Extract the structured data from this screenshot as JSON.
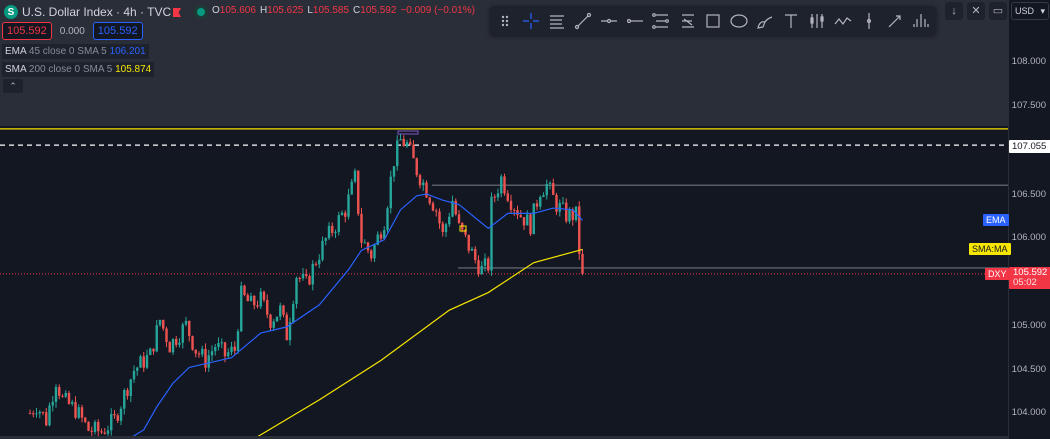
{
  "header": {
    "logo": "S",
    "title": "U.S. Dollar Index · 4h · TVC",
    "ohlc": {
      "o_label": "O",
      "o": "105.606",
      "h_label": "H",
      "h": "105.625",
      "l_label": "L",
      "l": "105.585",
      "c_label": "C",
      "c": "105.592",
      "change": "−0.009 (−0.01%)"
    }
  },
  "price_boxes": {
    "sell": "105.592",
    "spread": "0.000",
    "buy": "105.592"
  },
  "indicators": [
    {
      "name": "EMA",
      "params": "45 close 0 SMA 5",
      "value": "106.201",
      "color": "#2962ff"
    },
    {
      "name": "SMA",
      "params": "200 close 0 SMA 5",
      "value": "105.874",
      "color": "#f7e600"
    }
  ],
  "collapse_icon": "chevron-up-icon",
  "toolbar": {
    "tools": [
      "drag-handle",
      "crosshair",
      "horizontal-lines",
      "trend-line",
      "horizontal-ray",
      "ray",
      "parallel-channel",
      "regression-channel",
      "rectangle",
      "ellipse",
      "brush",
      "text",
      "long-position",
      "path",
      "vertical-line",
      "arrow",
      "pitchfork"
    ]
  },
  "right_buttons": {
    "down": "↓",
    "collapse": "collapse-icon",
    "fullscreen": "fullscreen-icon",
    "currency": "USD"
  },
  "axis": {
    "ticks": [
      "108.000",
      "107.500",
      "106.500",
      "106.000",
      "105.000",
      "104.500",
      "104.000"
    ],
    "tick_values": [
      108,
      107.5,
      106.5,
      106,
      105,
      104.5,
      104
    ],
    "dashed_label": "107.055",
    "last_price": "105.592",
    "countdown": "05:02"
  },
  "tags": {
    "ema": "EMA",
    "sma": "SMA:MA",
    "symbol": "DXY"
  },
  "colors": {
    "up": "#26a69a",
    "down": "#ef5350",
    "ema": "#2962ff",
    "sma": "#f7e600",
    "level": "#f7e600",
    "last": "#f23645"
  },
  "chart_data": {
    "type": "candlestick",
    "y_range": [
      103.7,
      108.7
    ],
    "levels": [
      {
        "price": 107.24,
        "style": "solid",
        "color": "#f7e600"
      },
      {
        "price": 107.055,
        "style": "dashed",
        "color": "#ffffff"
      },
      {
        "price": 106.6,
        "style": "solid",
        "color": "#9598a1"
      },
      {
        "price": 105.66,
        "style": "solid",
        "color": "#9598a1"
      },
      {
        "price": 105.592,
        "style": "dotted",
        "color": "#f23645"
      }
    ],
    "close_path": [
      [
        0,
        104.01
      ],
      [
        2,
        104.1
      ],
      [
        5,
        103.93
      ],
      [
        8,
        104.39
      ],
      [
        10,
        104.16
      ],
      [
        14,
        104.05
      ],
      [
        18,
        103.82
      ],
      [
        22,
        103.8
      ],
      [
        26,
        103.93
      ],
      [
        29,
        104.22
      ],
      [
        32,
        104.5
      ],
      [
        37,
        104.67
      ],
      [
        40,
        105.07
      ],
      [
        43,
        104.78
      ],
      [
        48,
        105.01
      ],
      [
        51,
        104.73
      ],
      [
        54,
        104.61
      ],
      [
        57,
        104.78
      ],
      [
        60,
        104.67
      ],
      [
        63,
        104.73
      ],
      [
        65,
        105.35
      ],
      [
        68,
        105.24
      ],
      [
        71,
        105.3
      ],
      [
        74,
        105.07
      ],
      [
        77,
        105.18
      ],
      [
        79,
        104.9
      ],
      [
        82,
        105.58
      ],
      [
        85,
        105.47
      ],
      [
        88,
        105.75
      ],
      [
        91,
        105.98
      ],
      [
        94,
        106.15
      ],
      [
        97,
        106.32
      ],
      [
        100,
        106.68
      ],
      [
        102,
        105.98
      ],
      [
        105,
        105.81
      ],
      [
        109,
        106.2
      ],
      [
        112,
        106.89
      ],
      [
        114,
        107.11
      ],
      [
        116,
        107.06
      ],
      [
        119,
        106.77
      ],
      [
        122,
        106.55
      ],
      [
        125,
        106.32
      ],
      [
        127,
        106.03
      ],
      [
        130,
        106.43
      ],
      [
        132,
        106.11
      ],
      [
        134,
        105.98
      ],
      [
        137,
        105.75
      ],
      [
        139,
        105.64
      ],
      [
        141,
        105.69
      ],
      [
        142,
        106.38
      ],
      [
        145,
        106.68
      ],
      [
        148,
        106.43
      ],
      [
        151,
        106.26
      ],
      [
        154,
        106.15
      ],
      [
        157,
        106.55
      ],
      [
        159,
        106.6
      ],
      [
        162,
        106.38
      ],
      [
        165,
        106.26
      ],
      [
        168,
        106.26
      ],
      [
        169,
        105.86
      ],
      [
        170,
        105.592
      ]
    ],
    "ema_path": [
      [
        15,
        103.73
      ],
      [
        31,
        103.73
      ],
      [
        35,
        103.82
      ],
      [
        39,
        104.08
      ],
      [
        44,
        104.35
      ],
      [
        49,
        104.53
      ],
      [
        62,
        104.64
      ],
      [
        71,
        104.92
      ],
      [
        79,
        104.99
      ],
      [
        89,
        105.24
      ],
      [
        98,
        105.64
      ],
      [
        102,
        105.86
      ],
      [
        109,
        105.98
      ],
      [
        114,
        106.32
      ],
      [
        119,
        106.48
      ],
      [
        122,
        106.5
      ],
      [
        127,
        106.43
      ],
      [
        132,
        106.38
      ],
      [
        141,
        106.11
      ],
      [
        147,
        106.28
      ],
      [
        155,
        106.28
      ],
      [
        161,
        106.34
      ],
      [
        167,
        106.32
      ],
      [
        170,
        106.2
      ]
    ],
    "sma_path": [
      [
        69,
        103.72
      ],
      [
        89,
        104.16
      ],
      [
        108,
        104.61
      ],
      [
        129,
        105.18
      ],
      [
        141,
        105.38
      ],
      [
        155,
        105.72
      ],
      [
        170,
        105.87
      ]
    ]
  }
}
